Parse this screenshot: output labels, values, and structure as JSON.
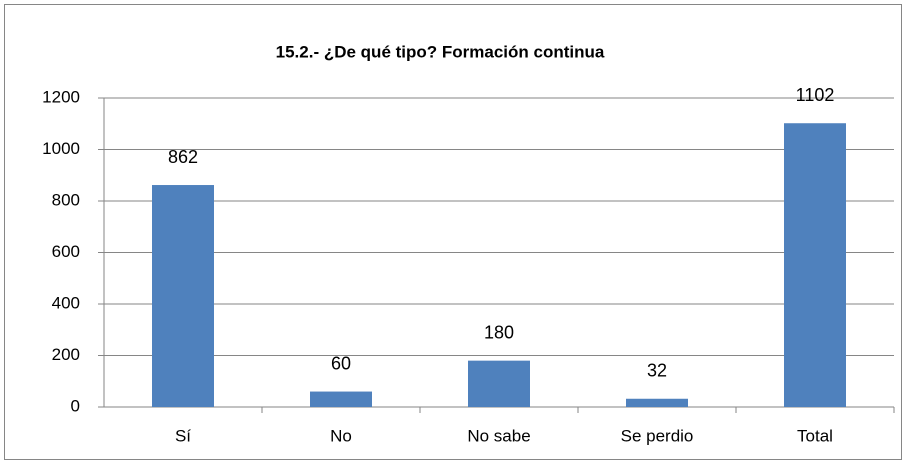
{
  "chart_data": {
    "type": "bar",
    "title": "15.2.- ¿De qué tipo? Formación continua",
    "categories": [
      "Sí",
      "No",
      "No sabe",
      "Se perdio",
      "Total"
    ],
    "values": [
      862,
      60,
      180,
      32,
      1102
    ],
    "color": "#4f81bd",
    "ylim": [
      0,
      1200
    ],
    "yticks": [
      0,
      200,
      400,
      600,
      800,
      1000,
      1200
    ],
    "grid": true
  }
}
